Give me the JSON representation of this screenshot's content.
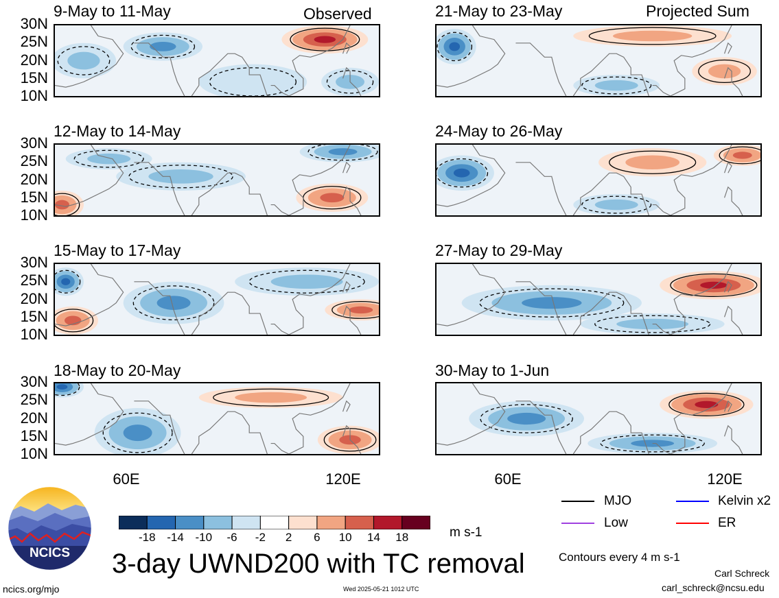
{
  "header": {
    "left_label": "Observed",
    "right_label": "Projected Sum"
  },
  "lat_ticks": [
    "30N",
    "25N",
    "20N",
    "15N",
    "10N"
  ],
  "lon_ticks": [
    "60E",
    "120E"
  ],
  "panels": [
    {
      "title": "9-May to 11-May"
    },
    {
      "title": "12-May to 14-May"
    },
    {
      "title": "15-May to 17-May"
    },
    {
      "title": "18-May to 20-May"
    },
    {
      "title": "21-May to 23-May"
    },
    {
      "title": "24-May to 26-May"
    },
    {
      "title": "27-May to 29-May"
    },
    {
      "title": "30-May to 1-Jun"
    }
  ],
  "colorbar": {
    "labels": [
      "-18",
      "-14",
      "-10",
      "-6",
      "-2",
      "2",
      "6",
      "10",
      "14",
      "18"
    ],
    "colors": [
      "#0b2d5a",
      "#2466b0",
      "#4a8fc6",
      "#8cc0df",
      "#cfe4f2",
      "#ffffff",
      "#fde0cf",
      "#f1a582",
      "#d6604d",
      "#b2182b",
      "#67001f"
    ],
    "unit": "m s-1"
  },
  "legend": {
    "items": [
      {
        "label": "MJO",
        "color": "#000000"
      },
      {
        "label": "Kelvin x2",
        "color": "#0000ff"
      },
      {
        "label": "Low",
        "color": "#a040e0"
      },
      {
        "label": "ER",
        "color": "#ff0000"
      }
    ],
    "note": "Contours every 4 m s-1"
  },
  "title": "3-day UWND200 with TC removal",
  "logo_text": "NCICS",
  "footer": {
    "url": "ncics.org/mjo",
    "timestamp": "Wed 2025-05-21 1012 UTC",
    "author": "Carl Schreck",
    "email": "carl_schreck@ncsu.edu"
  },
  "chart_data": {
    "type": "heatmap",
    "variable": "200-hPa zonal wind anomaly",
    "units": "m s-1",
    "lon_range": [
      40,
      130
    ],
    "lat_range": [
      10,
      30
    ],
    "lon_ticks": [
      60,
      120
    ],
    "lat_ticks": [
      30,
      25,
      20,
      15,
      10
    ],
    "color_levels": [
      -18,
      -14,
      -10,
      -6,
      -2,
      2,
      6,
      10,
      14,
      18
    ],
    "contour_interval": 4,
    "panels": [
      {
        "title": "9-May to 11-May",
        "label": "Observed",
        "blobs": [
          {
            "lon": 115,
            "lat": 26,
            "value": 14,
            "rx": 12,
            "ry": 4
          },
          {
            "lon": 70,
            "lat": 24,
            "value": -10,
            "rx": 11,
            "ry": 4
          },
          {
            "lon": 48,
            "lat": 20,
            "value": -6,
            "rx": 9,
            "ry": 5
          },
          {
            "lon": 122,
            "lat": 14,
            "value": -6,
            "rx": 8,
            "ry": 4
          },
          {
            "lon": 95,
            "lat": 14,
            "value": -2,
            "rx": 15,
            "ry": 5
          }
        ]
      },
      {
        "title": "12-May to 14-May",
        "blobs": [
          {
            "lon": 117,
            "lat": 15,
            "value": 10,
            "rx": 10,
            "ry": 4
          },
          {
            "lon": 42,
            "lat": 13,
            "value": 10,
            "rx": 6,
            "ry": 4
          },
          {
            "lon": 120,
            "lat": 28,
            "value": -10,
            "rx": 12,
            "ry": 3
          },
          {
            "lon": 75,
            "lat": 21,
            "value": -6,
            "rx": 18,
            "ry": 4
          },
          {
            "lon": 55,
            "lat": 26,
            "value": -6,
            "rx": 12,
            "ry": 3
          }
        ]
      },
      {
        "title": "15-May to 17-May",
        "blobs": [
          {
            "lon": 45,
            "lat": 14,
            "value": 10,
            "rx": 7,
            "ry": 4
          },
          {
            "lon": 125,
            "lat": 17,
            "value": 10,
            "rx": 10,
            "ry": 3
          },
          {
            "lon": 43,
            "lat": 25,
            "value": -14,
            "rx": 5,
            "ry": 4
          },
          {
            "lon": 73,
            "lat": 19,
            "value": -10,
            "rx": 14,
            "ry": 6
          },
          {
            "lon": 110,
            "lat": 25,
            "value": -6,
            "rx": 20,
            "ry": 4
          }
        ]
      },
      {
        "title": "18-May to 20-May",
        "blobs": [
          {
            "lon": 122,
            "lat": 14,
            "value": 10,
            "rx": 9,
            "ry": 4
          },
          {
            "lon": 42,
            "lat": 29,
            "value": -14,
            "rx": 6,
            "ry": 3
          },
          {
            "lon": 63,
            "lat": 16,
            "value": -10,
            "rx": 12,
            "ry": 7
          },
          {
            "lon": 100,
            "lat": 26,
            "value": 6,
            "rx": 20,
            "ry": 3
          }
        ]
      },
      {
        "title": "21-May to 23-May",
        "label": "Projected Sum",
        "blobs": [
          {
            "lon": 45,
            "lat": 24,
            "value": -14,
            "rx": 6,
            "ry": 5
          },
          {
            "lon": 100,
            "lat": 27,
            "value": 6,
            "rx": 22,
            "ry": 3
          },
          {
            "lon": 120,
            "lat": 17,
            "value": 6,
            "rx": 9,
            "ry": 4
          },
          {
            "lon": 90,
            "lat": 13,
            "value": -6,
            "rx": 12,
            "ry": 3
          }
        ]
      },
      {
        "title": "24-May to 26-May",
        "blobs": [
          {
            "lon": 47,
            "lat": 22,
            "value": -14,
            "rx": 9,
            "ry": 5
          },
          {
            "lon": 100,
            "lat": 25,
            "value": 6,
            "rx": 15,
            "ry": 4
          },
          {
            "lon": 125,
            "lat": 27,
            "value": 10,
            "rx": 8,
            "ry": 3
          },
          {
            "lon": 90,
            "lat": 13,
            "value": -6,
            "rx": 12,
            "ry": 3
          }
        ]
      },
      {
        "title": "27-May to 29-May",
        "blobs": [
          {
            "lon": 117,
            "lat": 24,
            "value": 14,
            "rx": 15,
            "ry": 4
          },
          {
            "lon": 72,
            "lat": 19,
            "value": -10,
            "rx": 25,
            "ry": 5
          },
          {
            "lon": 100,
            "lat": 13,
            "value": -6,
            "rx": 20,
            "ry": 3
          }
        ]
      },
      {
        "title": "30-May to 1-Jun",
        "blobs": [
          {
            "lon": 115,
            "lat": 24,
            "value": 14,
            "rx": 13,
            "ry": 4
          },
          {
            "lon": 65,
            "lat": 20,
            "value": -10,
            "rx": 16,
            "ry": 5
          },
          {
            "lon": 100,
            "lat": 13,
            "value": -10,
            "rx": 18,
            "ry": 3
          }
        ]
      }
    ]
  }
}
